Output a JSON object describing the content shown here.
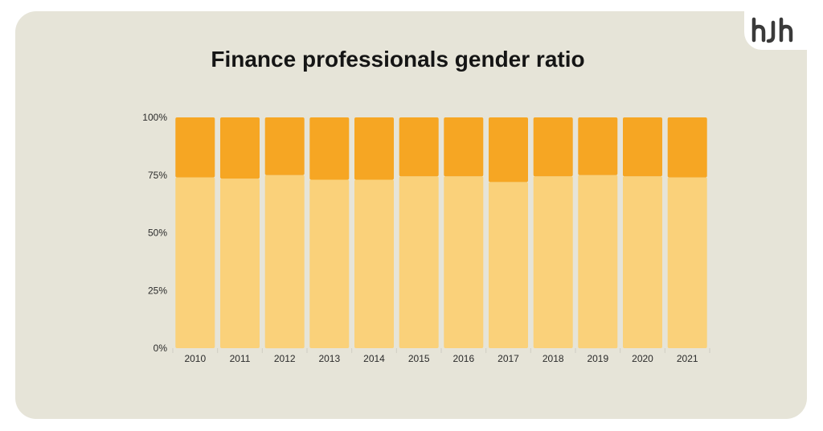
{
  "logo": {
    "text": "hJh"
  },
  "chart_data": {
    "type": "bar",
    "stacked": true,
    "title": "Finance professionals gender ratio",
    "xlabel": "",
    "ylabel": "",
    "ylim": [
      0,
      100
    ],
    "yticks": [
      "0%",
      "25%",
      "50%",
      "75%",
      "100%"
    ],
    "categories": [
      "2010",
      "2011",
      "2012",
      "2013",
      "2014",
      "2015",
      "2016",
      "2017",
      "2018",
      "2019",
      "2020",
      "2021"
    ],
    "series": [
      {
        "values": [
          74,
          73.5,
          75,
          73,
          73,
          74.5,
          74.5,
          72,
          74.5,
          75,
          74.5,
          74
        ],
        "color": "#fad17a"
      },
      {
        "values": [
          26,
          26.5,
          25,
          27,
          27,
          25.5,
          25.5,
          28,
          25.5,
          25,
          25.5,
          26
        ],
        "color": "#f6a623"
      }
    ],
    "grid": false,
    "legend": "none"
  },
  "colors": {
    "background": "#e6e4d8",
    "tick_line": "#cfcdc3"
  }
}
